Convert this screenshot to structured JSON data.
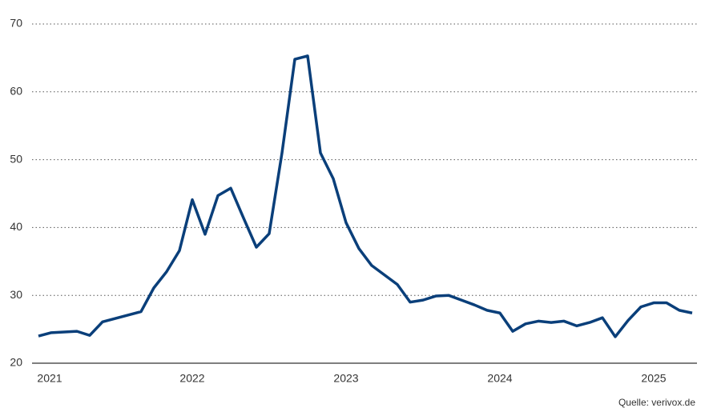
{
  "chart_data": {
    "type": "line",
    "categories": [
      "2021",
      null,
      null,
      null,
      null,
      null,
      null,
      null,
      null,
      null,
      null,
      null,
      "2022",
      null,
      null,
      null,
      null,
      null,
      null,
      null,
      null,
      null,
      null,
      null,
      "2023",
      null,
      null,
      null,
      null,
      null,
      null,
      null,
      null,
      null,
      null,
      null,
      "2024",
      null,
      null,
      null,
      null,
      null,
      null,
      null,
      null,
      null,
      null,
      null,
      "2025",
      null,
      null,
      null
    ],
    "series": [
      {
        "color": "#0a3f7a",
        "values": [
          24.0,
          24.5,
          24.6,
          24.7,
          24.1,
          26.1,
          26.6,
          27.1,
          27.6,
          31.1,
          33.5,
          36.6,
          44.1,
          39.0,
          44.7,
          45.8,
          41.4,
          37.1,
          39.1,
          51.0,
          64.8,
          65.3,
          51.0,
          47.2,
          40.7,
          36.9,
          34.4,
          33.0,
          31.6,
          29.0,
          29.3,
          29.9,
          30.0,
          29.3,
          28.6,
          27.8,
          27.4,
          24.7,
          25.8,
          26.2,
          26.0,
          26.2,
          25.5,
          26.0,
          26.7,
          23.9,
          26.3,
          28.3,
          28.9,
          28.9,
          27.8,
          27.4
        ]
      }
    ],
    "ylim": [
      20,
      70
    ],
    "yticks": [
      20,
      30,
      40,
      50,
      60,
      70
    ],
    "grid": true,
    "source": "Quelle: verivox.de"
  }
}
